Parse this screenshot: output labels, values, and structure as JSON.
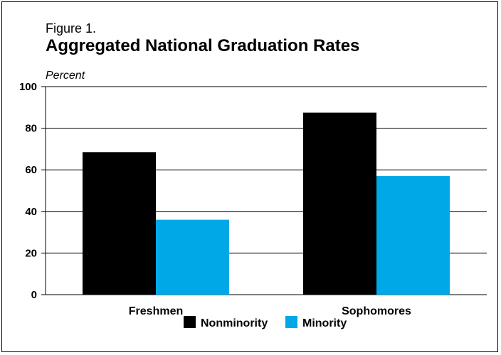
{
  "figure": {
    "label": "Figure 1.",
    "title": "Aggregated National Graduation Rates",
    "unit": "Percent"
  },
  "chart_data": {
    "type": "bar",
    "title": "Aggregated National Graduation Rates",
    "ylabel": "Percent",
    "xlabel": "",
    "ylim": [
      0,
      100
    ],
    "yticks": [
      0,
      20,
      40,
      60,
      80,
      100
    ],
    "categories": [
      "Freshmen",
      "Sophomores"
    ],
    "series": [
      {
        "name": "Nonminority",
        "color": "#000000",
        "values": [
          68.5,
          87.5
        ]
      },
      {
        "name": "Minority",
        "color": "#00a8e8",
        "values": [
          36,
          57
        ]
      }
    ],
    "grid": true,
    "legend": "bottom-center"
  }
}
